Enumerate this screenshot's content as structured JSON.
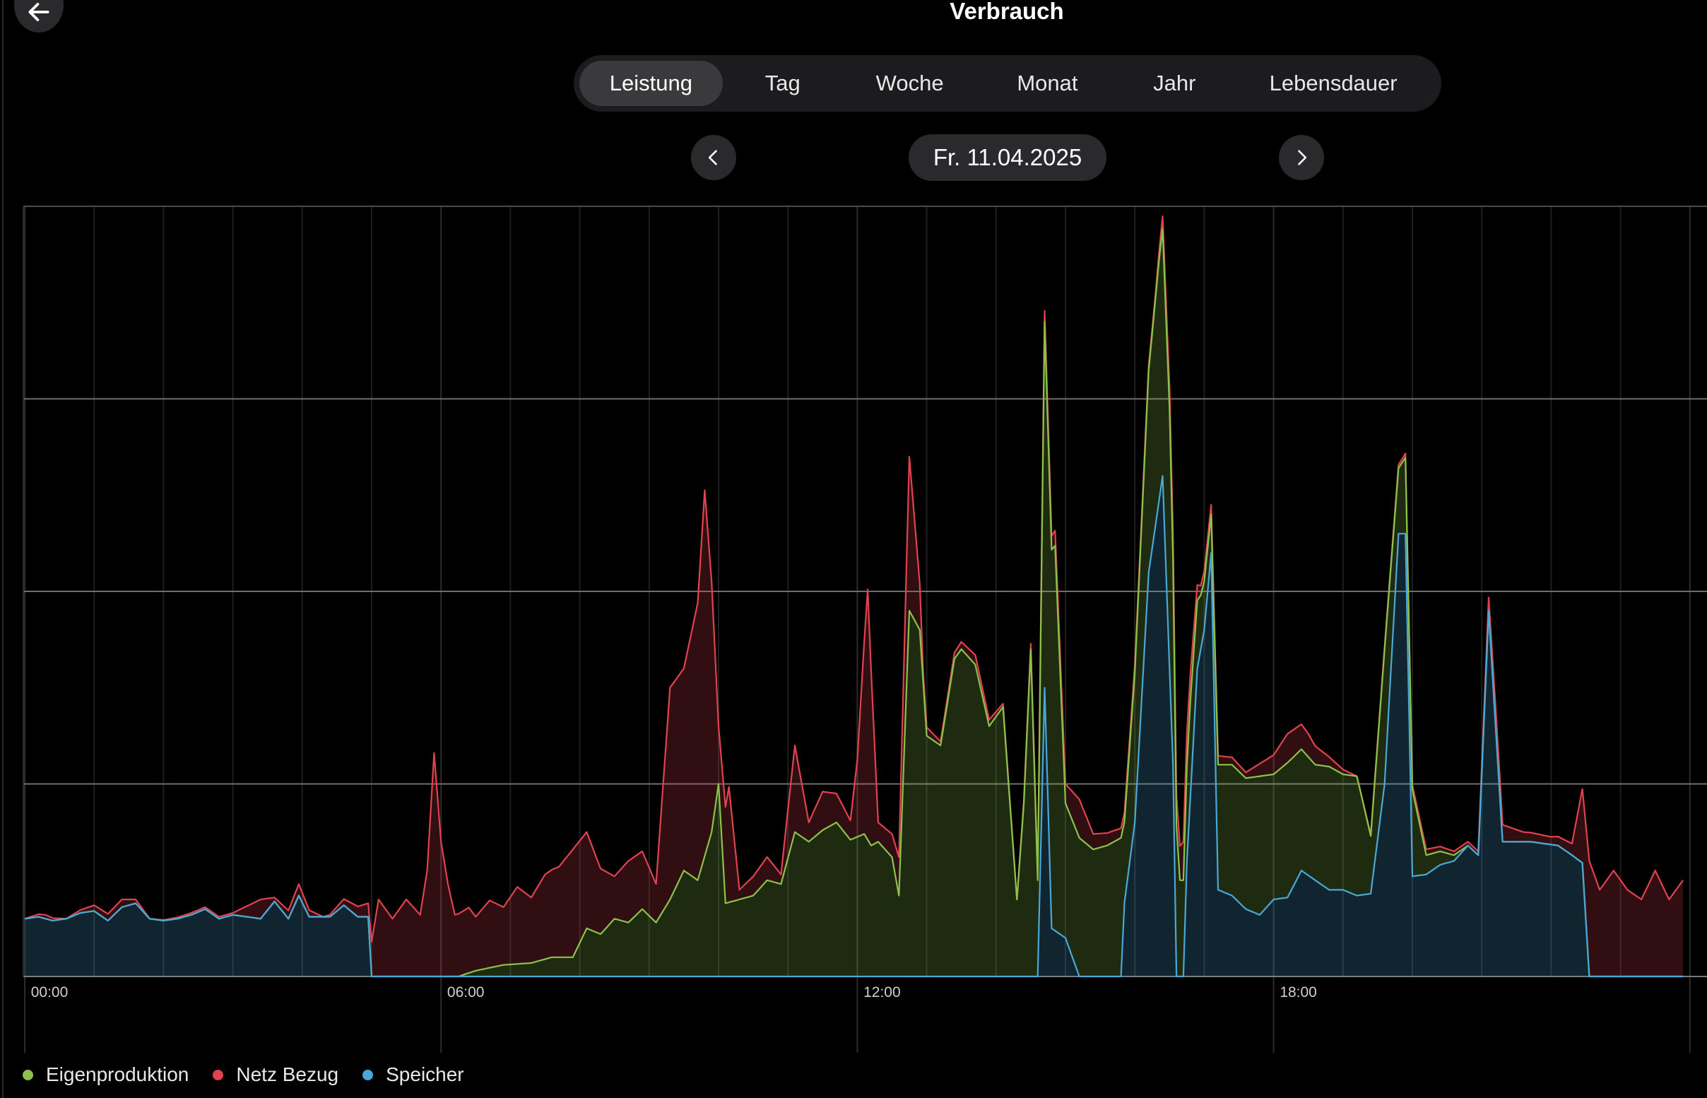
{
  "header": {
    "title": "Verbrauch",
    "back_icon": "arrow-left-icon"
  },
  "tabs": [
    {
      "label": "Leistung",
      "active": true
    },
    {
      "label": "Tag",
      "active": false
    },
    {
      "label": "Woche",
      "active": false
    },
    {
      "label": "Monat",
      "active": false
    },
    {
      "label": "Jahr",
      "active": false
    },
    {
      "label": "Lebensdauer",
      "active": false
    }
  ],
  "date_nav": {
    "date": "Fr. 11.04.2025",
    "prev_icon": "chevron-left-icon",
    "next_icon": "chevron-right-icon"
  },
  "colors": {
    "eigen": "#8bc34a",
    "netz": "#e0424f",
    "speicher": "#4aa8d8",
    "background": "#000000"
  },
  "chart_data": {
    "type": "area",
    "stacked": true,
    "x_unit": "hours",
    "xlim": [
      0,
      24
    ],
    "ylim": [
      0,
      4
    ],
    "grid": true,
    "legend_placement": "bottom-left",
    "xtick_labels": [
      {
        "x": 0,
        "label": "00:00"
      },
      {
        "x": 6,
        "label": "06:00"
      },
      {
        "x": 12,
        "label": "12:00"
      },
      {
        "x": 18,
        "label": "18:00"
      }
    ],
    "legend": [
      "Eigenproduktion",
      "Netz Bezug",
      "Speicher"
    ],
    "series": [
      {
        "name": "Speicher",
        "color": "#4aa8d8",
        "points": [
          [
            0,
            0.3
          ],
          [
            0.2,
            0.31
          ],
          [
            0.4,
            0.29
          ],
          [
            0.6,
            0.3
          ],
          [
            0.8,
            0.33
          ],
          [
            1.0,
            0.34
          ],
          [
            1.2,
            0.29
          ],
          [
            1.4,
            0.36
          ],
          [
            1.6,
            0.38
          ],
          [
            1.8,
            0.3
          ],
          [
            2.0,
            0.29
          ],
          [
            2.2,
            0.3
          ],
          [
            2.4,
            0.32
          ],
          [
            2.6,
            0.35
          ],
          [
            2.8,
            0.3
          ],
          [
            3.0,
            0.32
          ],
          [
            3.2,
            0.31
          ],
          [
            3.4,
            0.3
          ],
          [
            3.6,
            0.39
          ],
          [
            3.8,
            0.3
          ],
          [
            3.95,
            0.42
          ],
          [
            4.1,
            0.31
          ],
          [
            4.4,
            0.31
          ],
          [
            4.6,
            0.37
          ],
          [
            4.8,
            0.31
          ],
          [
            4.95,
            0.31
          ],
          [
            5.0,
            0
          ],
          [
            14.6,
            0
          ],
          [
            14.62,
            0.3
          ],
          [
            14.7,
            1.5
          ],
          [
            14.8,
            0.25
          ],
          [
            15.0,
            0.2
          ],
          [
            15.2,
            0
          ],
          [
            15.8,
            0
          ],
          [
            15.82,
            0.3
          ],
          [
            16.0,
            0.8
          ],
          [
            16.2,
            2.1
          ],
          [
            16.4,
            2.6
          ],
          [
            16.55,
            1.1
          ],
          [
            16.58,
            0
          ],
          [
            16.7,
            0
          ],
          [
            16.72,
            0.4
          ],
          [
            16.9,
            1.6
          ],
          [
            17.0,
            1.8
          ],
          [
            17.1,
            2.2
          ],
          [
            17.2,
            0.45
          ],
          [
            17.4,
            0.42
          ],
          [
            17.6,
            0.35
          ],
          [
            17.8,
            0.32
          ],
          [
            18.0,
            0.4
          ],
          [
            18.2,
            0.41
          ],
          [
            18.4,
            0.55
          ],
          [
            18.6,
            0.5
          ],
          [
            18.8,
            0.45
          ],
          [
            19.0,
            0.45
          ],
          [
            19.2,
            0.42
          ],
          [
            19.4,
            0.43
          ],
          [
            19.6,
            1.0
          ],
          [
            19.8,
            2.3
          ],
          [
            19.9,
            2.3
          ],
          [
            20.0,
            0.52
          ],
          [
            20.2,
            0.53
          ],
          [
            20.4,
            0.58
          ],
          [
            20.6,
            0.6
          ],
          [
            20.8,
            0.68
          ],
          [
            20.95,
            0.63
          ],
          [
            21.1,
            1.9
          ],
          [
            21.3,
            0.7
          ],
          [
            21.5,
            0.7
          ],
          [
            21.7,
            0.7
          ],
          [
            21.9,
            0.69
          ],
          [
            22.1,
            0.68
          ],
          [
            22.3,
            0.63
          ],
          [
            22.45,
            0.59
          ],
          [
            22.55,
            0
          ],
          [
            24,
            0
          ]
        ]
      },
      {
        "name": "Eigenproduktion",
        "color": "#8bc34a",
        "points": [
          [
            0,
            0
          ],
          [
            6.25,
            0
          ],
          [
            6.5,
            0.03
          ],
          [
            6.9,
            0.06
          ],
          [
            7.3,
            0.07
          ],
          [
            7.6,
            0.1
          ],
          [
            7.9,
            0.1
          ],
          [
            8.1,
            0.25
          ],
          [
            8.3,
            0.22
          ],
          [
            8.5,
            0.3
          ],
          [
            8.7,
            0.28
          ],
          [
            8.9,
            0.35
          ],
          [
            9.1,
            0.28
          ],
          [
            9.3,
            0.4
          ],
          [
            9.5,
            0.55
          ],
          [
            9.7,
            0.5
          ],
          [
            9.9,
            0.75
          ],
          [
            10.0,
            1.0
          ],
          [
            10.1,
            0.38
          ],
          [
            10.3,
            0.4
          ],
          [
            10.5,
            0.42
          ],
          [
            10.7,
            0.5
          ],
          [
            10.9,
            0.48
          ],
          [
            11.1,
            0.75
          ],
          [
            11.3,
            0.7
          ],
          [
            11.5,
            0.76
          ],
          [
            11.7,
            0.8
          ],
          [
            11.9,
            0.71
          ],
          [
            12.1,
            0.74
          ],
          [
            12.2,
            0.68
          ],
          [
            12.3,
            0.7
          ],
          [
            12.5,
            0.62
          ],
          [
            12.6,
            0.42
          ],
          [
            12.75,
            1.9
          ],
          [
            12.9,
            1.8
          ],
          [
            13.0,
            1.25
          ],
          [
            13.2,
            1.2
          ],
          [
            13.4,
            1.65
          ],
          [
            13.5,
            1.7
          ],
          [
            13.7,
            1.62
          ],
          [
            13.9,
            1.3
          ],
          [
            14.1,
            1.4
          ],
          [
            14.3,
            0.4
          ],
          [
            14.4,
            0.9
          ],
          [
            14.5,
            1.7
          ],
          [
            14.6,
            0.5
          ],
          [
            14.7,
            1.9
          ],
          [
            14.85,
            2.0
          ],
          [
            15.0,
            0.7
          ],
          [
            15.2,
            0.72
          ],
          [
            15.4,
            0.66
          ],
          [
            15.6,
            0.68
          ],
          [
            15.8,
            0.72
          ],
          [
            15.85,
            0.42
          ],
          [
            16.0,
            0.78
          ],
          [
            16.2,
            1.05
          ],
          [
            16.35,
            1.25
          ],
          [
            16.5,
            1.35
          ],
          [
            16.65,
            0.5
          ],
          [
            16.8,
            0.5
          ],
          [
            16.95,
            0.28
          ],
          [
            17.1,
            0.2
          ],
          [
            17.2,
            0.65
          ],
          [
            17.4,
            0.68
          ],
          [
            17.6,
            0.68
          ],
          [
            17.8,
            0.72
          ],
          [
            18.0,
            0.65
          ],
          [
            18.2,
            0.7
          ],
          [
            18.4,
            0.63
          ],
          [
            18.6,
            0.6
          ],
          [
            18.8,
            0.64
          ],
          [
            19.0,
            0.6
          ],
          [
            19.2,
            0.62
          ],
          [
            19.4,
            0.3
          ],
          [
            19.6,
            0.7
          ],
          [
            19.8,
            0.34
          ],
          [
            20.0,
            0.45
          ],
          [
            20.2,
            0.1
          ],
          [
            20.4,
            0.07
          ],
          [
            20.6,
            0.03
          ],
          [
            20.8,
            0
          ],
          [
            24,
            0
          ]
        ]
      },
      {
        "name": "Netz Bezug",
        "color": "#e0424f",
        "points": [
          [
            0,
            0
          ],
          [
            0.3,
            0.02
          ],
          [
            0.6,
            0
          ],
          [
            1.0,
            0.03
          ],
          [
            1.4,
            0.04
          ],
          [
            1.8,
            0
          ],
          [
            2.4,
            0.01
          ],
          [
            3.0,
            0.01
          ],
          [
            3.4,
            0.1
          ],
          [
            3.6,
            0.02
          ],
          [
            3.95,
            0.06
          ],
          [
            4.3,
            0
          ],
          [
            4.95,
            0.07
          ],
          [
            5.1,
            0.4
          ],
          [
            5.3,
            0.3
          ],
          [
            5.5,
            0.4
          ],
          [
            5.7,
            0.32
          ],
          [
            5.8,
            0.55
          ],
          [
            5.9,
            1.16
          ],
          [
            6.0,
            0.7
          ],
          [
            6.1,
            0.48
          ],
          [
            6.2,
            0.32
          ],
          [
            6.4,
            0.34
          ],
          [
            6.5,
            0.28
          ],
          [
            6.7,
            0.35
          ],
          [
            6.9,
            0.3
          ],
          [
            7.1,
            0.4
          ],
          [
            7.3,
            0.34
          ],
          [
            7.5,
            0.44
          ],
          [
            7.7,
            0.47
          ],
          [
            7.9,
            0.56
          ],
          [
            8.1,
            0.5
          ],
          [
            8.3,
            0.34
          ],
          [
            8.5,
            0.22
          ],
          [
            8.7,
            0.32
          ],
          [
            8.9,
            0.3
          ],
          [
            9.1,
            0.2
          ],
          [
            9.3,
            1.1
          ],
          [
            9.5,
            1.05
          ],
          [
            9.7,
            1.44
          ],
          [
            9.8,
            1.9
          ],
          [
            9.9,
            1.3
          ],
          [
            10.0,
            0.3
          ],
          [
            10.15,
            0.6
          ],
          [
            10.3,
            0.05
          ],
          [
            10.5,
            0.1
          ],
          [
            10.7,
            0.12
          ],
          [
            10.9,
            0.05
          ],
          [
            11.1,
            0.45
          ],
          [
            11.3,
            0.1
          ],
          [
            11.5,
            0.2
          ],
          [
            11.7,
            0.15
          ],
          [
            11.9,
            0.1
          ],
          [
            12.0,
            0.4
          ],
          [
            12.15,
            1.3
          ],
          [
            12.3,
            0.1
          ],
          [
            12.5,
            0.12
          ],
          [
            12.6,
            0.2
          ],
          [
            12.75,
            0.8
          ],
          [
            12.95,
            0.05
          ],
          [
            13.2,
            0.02
          ],
          [
            13.7,
            0.05
          ],
          [
            14.3,
            0
          ],
          [
            15.0,
            0.1
          ],
          [
            15.2,
            0.2
          ],
          [
            15.4,
            0.08
          ],
          [
            15.8,
            0.05
          ],
          [
            16.3,
            0.02
          ],
          [
            16.7,
            0.2
          ],
          [
            16.95,
            0.05
          ],
          [
            17.1,
            0.05
          ],
          [
            17.6,
            0.03
          ],
          [
            18.0,
            0.1
          ],
          [
            18.2,
            0.15
          ],
          [
            18.5,
            0.12
          ],
          [
            18.8,
            0.05
          ],
          [
            19.2,
            0
          ],
          [
            20.2,
            0.03
          ],
          [
            20.6,
            0.02
          ],
          [
            20.95,
            0.02
          ],
          [
            21.2,
            0.1
          ],
          [
            21.6,
            0.05
          ],
          [
            22.0,
            0.04
          ],
          [
            22.3,
            0.06
          ],
          [
            22.55,
            0.6
          ],
          [
            22.7,
            0.45
          ],
          [
            22.9,
            0.55
          ],
          [
            23.1,
            0.45
          ],
          [
            23.3,
            0.4
          ],
          [
            23.5,
            0.55
          ],
          [
            23.7,
            0.4
          ],
          [
            23.9,
            0.5
          ],
          [
            24,
            0.45
          ]
        ]
      }
    ]
  }
}
